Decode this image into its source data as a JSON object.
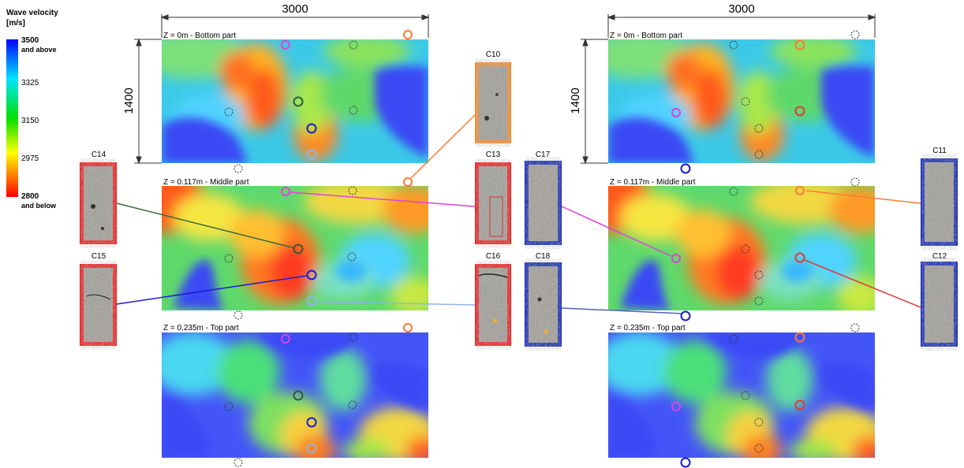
{
  "legend": {
    "title_line1": "Wave velocity",
    "title_line2": "[m/s]",
    "ticks": [
      {
        "value": "3500",
        "sub": "and above"
      },
      {
        "value": "3325",
        "sub": ""
      },
      {
        "value": "3150",
        "sub": ""
      },
      {
        "value": "2975",
        "sub": ""
      },
      {
        "value": "2800",
        "sub": "and below"
      }
    ],
    "colors": [
      "#0000ff",
      "#00e5ff",
      "#00e000",
      "#ffff00",
      "#ff8000",
      "#ff0000"
    ]
  },
  "dimensions": {
    "width_label": "3000",
    "height_label": "1400"
  },
  "panels": {
    "bottom": "Z = 0m - Bottom part",
    "middle": "Z = 0.117m - Middle part",
    "top": "Z = 0.235m - Top part"
  },
  "cores": {
    "C10": "C10",
    "C11": "C11",
    "C12": "C12",
    "C13": "C13",
    "C14": "C14",
    "C15": "C15",
    "C16": "C16",
    "C17": "C17",
    "C18": "C18"
  },
  "marker_colors": {
    "orange": "#ff7a2e",
    "magenta": "#e040e0",
    "darkgreen": "#2f5d2f",
    "blue": "#1c1ccc",
    "lightblue": "#8fb4e6",
    "red": "#e03a3a",
    "frame_red": "#ee1c1c",
    "frame_blue": "#1428b4",
    "frame_orange": "#f08a2c"
  }
}
